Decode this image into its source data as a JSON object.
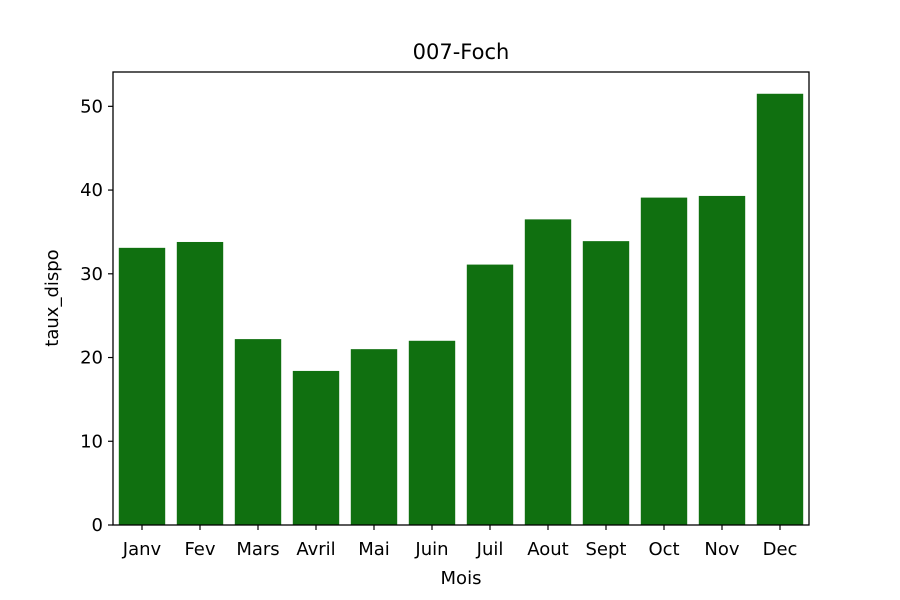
{
  "colors": {
    "bar": "#107010",
    "axis": "#000000",
    "background": "#ffffff"
  },
  "chart_data": {
    "type": "bar",
    "title": "007-Foch",
    "xlabel": "Mois",
    "ylabel": "taux_dispo",
    "categories": [
      "Janv",
      "Fev",
      "Mars",
      "Avril",
      "Mai",
      "Juin",
      "Juil",
      "Aout",
      "Sept",
      "Oct",
      "Nov",
      "Dec"
    ],
    "values": [
      33.1,
      33.8,
      22.2,
      18.4,
      21.0,
      22.0,
      31.1,
      36.5,
      33.9,
      39.1,
      39.3,
      51.5
    ],
    "ylim": [
      0,
      54.1
    ],
    "yticks": [
      0,
      10,
      20,
      30,
      40,
      50
    ],
    "grid": false,
    "legend": "none"
  }
}
